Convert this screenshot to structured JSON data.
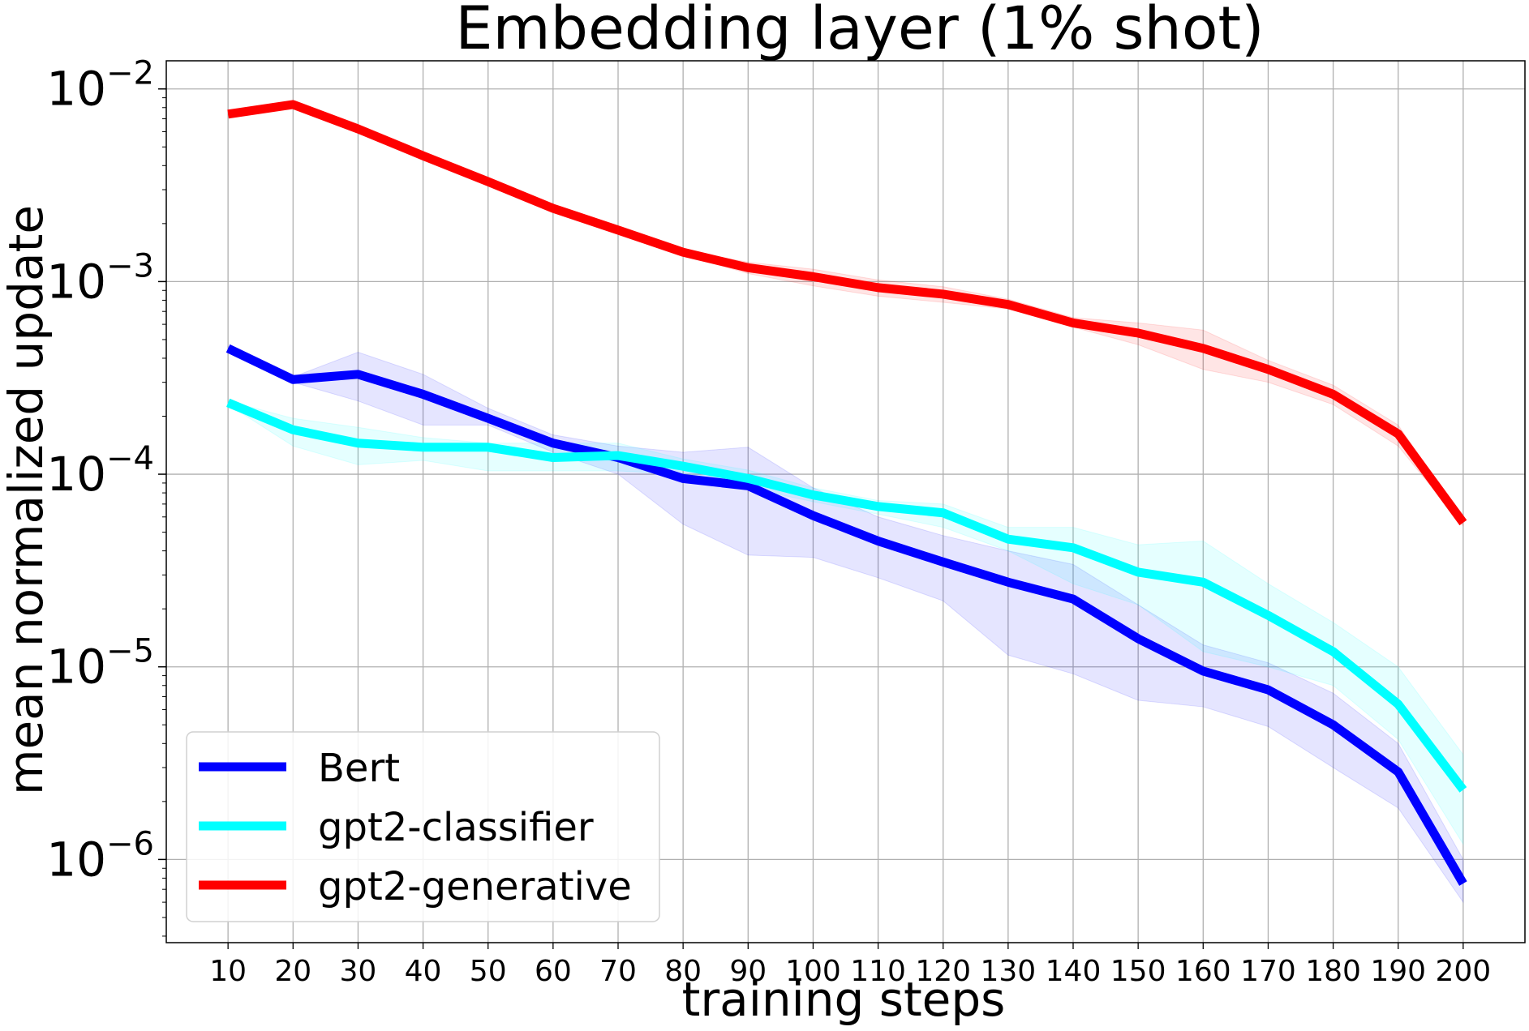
{
  "chart_data": {
    "type": "line",
    "title": "Embedding layer (1% shot)",
    "xlabel": "training steps",
    "ylabel": "mean normalized update",
    "yscale": "log",
    "x": [
      10,
      20,
      30,
      40,
      50,
      60,
      70,
      80,
      90,
      100,
      110,
      120,
      130,
      140,
      150,
      160,
      170,
      180,
      190,
      200
    ],
    "xticks": [
      "10",
      "20",
      "30",
      "40",
      "50",
      "60",
      "70",
      "80",
      "90",
      "100",
      "110",
      "120",
      "130",
      "140",
      "150",
      "160",
      "170",
      "180",
      "190",
      "200"
    ],
    "yticks": [
      {
        "value": 1e-06,
        "base": "10",
        "exp": "−6"
      },
      {
        "value": 1e-05,
        "base": "10",
        "exp": "−5"
      },
      {
        "value": 0.0001,
        "base": "10",
        "exp": "−4"
      },
      {
        "value": 0.001,
        "base": "10",
        "exp": "−3"
      },
      {
        "value": 0.01,
        "base": "10",
        "exp": "−2"
      }
    ],
    "xlim": [
      0.5,
      209.5
    ],
    "ylim": [
      3.7e-07,
      0.014
    ],
    "grid": true,
    "legend_position": "lower-left",
    "series": [
      {
        "name": "Bert",
        "color": "#0000ff",
        "fill_color": "#0000ff",
        "values": [
          0.00045,
          0.00031,
          0.00033,
          0.00026,
          0.000195,
          0.000145,
          0.000122,
          9.5e-05,
          8.7e-05,
          6.1e-05,
          4.5e-05,
          3.5e-05,
          2.75e-05,
          2.25e-05,
          1.4e-05,
          9.5e-06,
          7.6e-06,
          5e-06,
          2.85e-06,
          7.5e-07
        ],
        "lower": [
          0.00044,
          0.0003,
          0.00024,
          0.00018,
          0.00018,
          0.00013,
          0.0001,
          5.5e-05,
          3.8e-05,
          3.7e-05,
          2.9e-05,
          2.2e-05,
          1.15e-05,
          9.2e-06,
          6.7e-06,
          6.2e-06,
          4.9e-06,
          3e-06,
          1.85e-06,
          6e-07
        ],
        "upper": [
          0.00046,
          0.00032,
          0.00043,
          0.00033,
          0.00022,
          0.00016,
          0.00014,
          0.00013,
          0.000138,
          8.5e-05,
          6e-05,
          4.8e-05,
          4e-05,
          3.4e-05,
          2.1e-05,
          1.3e-05,
          1.05e-05,
          7.3e-06,
          4e-06,
          1e-06
        ]
      },
      {
        "name": "gpt2-classifier",
        "color": "#00ffff",
        "fill_color": "#00ffff",
        "values": [
          0.000235,
          0.00017,
          0.000145,
          0.000138,
          0.000138,
          0.000122,
          0.000125,
          0.00011,
          9.5e-05,
          7.8e-05,
          6.8e-05,
          6.3e-05,
          4.6e-05,
          4.15e-05,
          3.1e-05,
          2.75e-05,
          1.85e-05,
          1.2e-05,
          6.4e-06,
          2.3e-06
        ],
        "lower": [
          0.00023,
          0.00014,
          0.000112,
          0.000118,
          0.000104,
          0.000104,
          0.000104,
          0.0001,
          8.5e-05,
          7.2e-05,
          6.2e-05,
          5.3e-05,
          4e-05,
          2.7e-05,
          2.1e-05,
          1.2e-05,
          1e-05,
          8e-06,
          4.2e-06,
          1.2e-06
        ],
        "upper": [
          0.00024,
          0.000195,
          0.000175,
          0.000155,
          0.000145,
          0.000145,
          0.000145,
          0.00012,
          0.000105,
          8.5e-05,
          7.3e-05,
          7e-05,
          5.3e-05,
          5.3e-05,
          4.3e-05,
          4.5e-05,
          2.7e-05,
          1.7e-05,
          1e-05,
          3.5e-06
        ]
      },
      {
        "name": "gpt2-generative",
        "color": "#ff0000",
        "fill_color": "#ff0000",
        "values": [
          0.0074,
          0.0083,
          0.0062,
          0.0045,
          0.0033,
          0.0024,
          0.00185,
          0.00142,
          0.00118,
          0.00106,
          0.00093,
          0.00086,
          0.00076,
          0.00061,
          0.00054,
          0.00045,
          0.00035,
          0.00026,
          0.000162,
          5.6e-05
        ],
        "lower": [
          0.0073,
          0.0082,
          0.0061,
          0.0044,
          0.0032,
          0.0023,
          0.0018,
          0.00138,
          0.0011,
          0.00095,
          0.00084,
          0.00078,
          0.00072,
          0.00058,
          0.00047,
          0.00035,
          0.0003,
          0.00023,
          0.00014,
          5.4e-05
        ],
        "upper": [
          0.0075,
          0.0084,
          0.0063,
          0.0046,
          0.0034,
          0.0025,
          0.0019,
          0.00146,
          0.00126,
          0.00116,
          0.00102,
          0.00094,
          0.00081,
          0.00065,
          0.00061,
          0.00056,
          0.00039,
          0.00029,
          0.00018,
          5.8e-05
        ]
      }
    ]
  }
}
